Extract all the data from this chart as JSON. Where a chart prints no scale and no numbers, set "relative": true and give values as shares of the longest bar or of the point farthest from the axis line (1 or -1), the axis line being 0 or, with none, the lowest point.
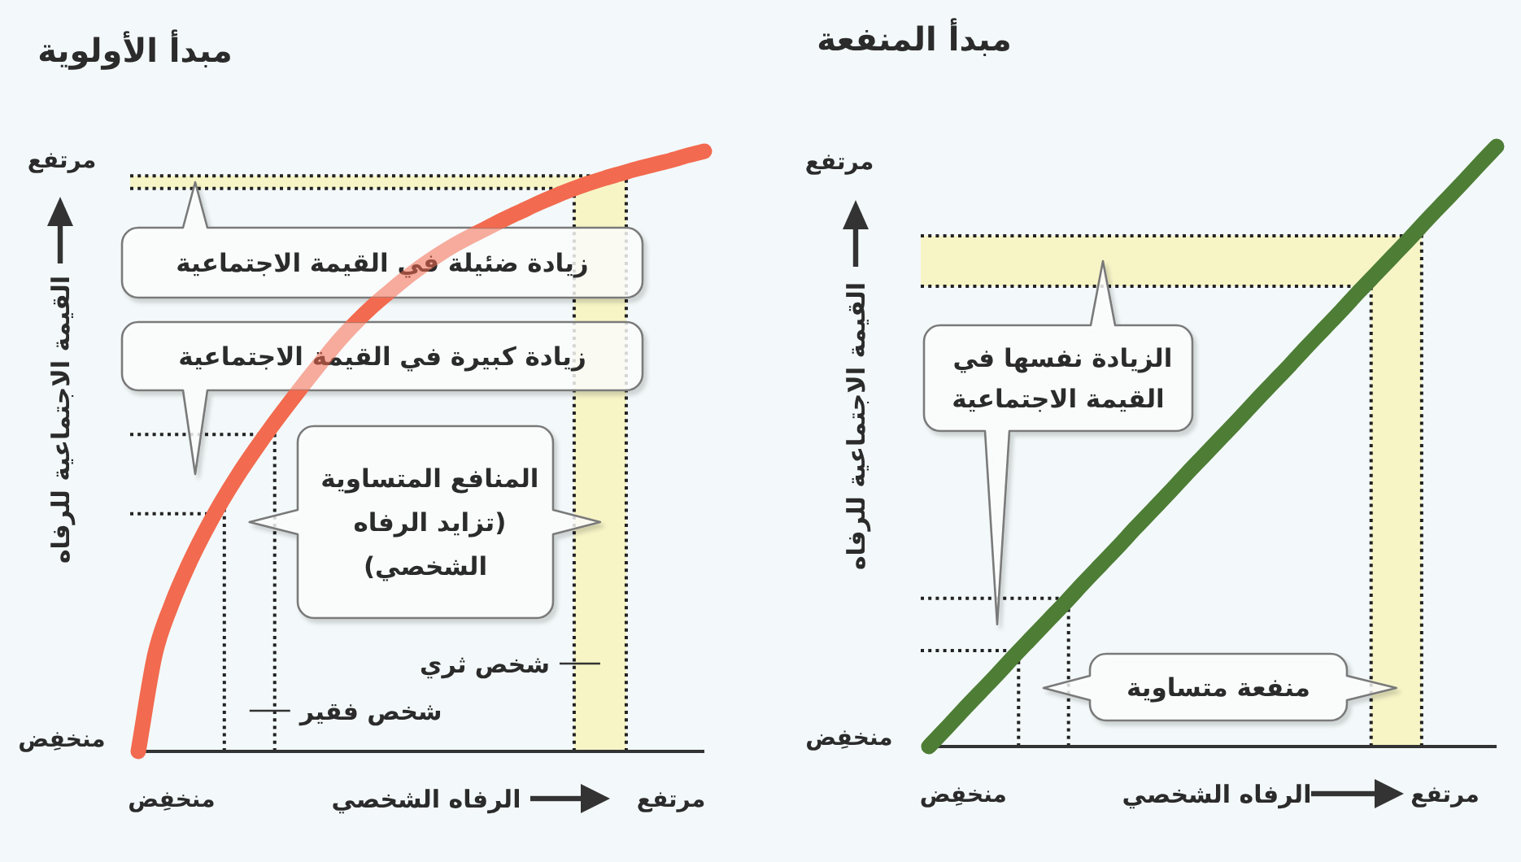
{
  "chart_data": [
    {
      "type": "line",
      "title": "مبدأ الأولوية",
      "xlabel": "الرفاه الشخصي",
      "ylabel": "القيمة الاجتماعية للرفاه",
      "relative": true,
      "categories": [
        null,
        null,
        "منخفِض",
        null,
        null,
        null,
        null,
        null,
        null,
        null,
        null,
        null,
        null,
        null,
        null,
        null,
        null,
        null,
        null,
        null,
        null,
        null,
        null,
        null,
        null,
        null,
        null,
        null,
        null,
        null,
        null,
        null,
        "مرتفع",
        null,
        null
      ],
      "series": [
        {
          "color": "#f26a4f",
          "values": [
            0,
            0.161,
            0.245,
            0.31,
            0.366,
            0.416,
            0.461,
            0.502,
            0.541,
            0.578,
            0.614,
            0.649,
            0.683,
            0.713,
            0.74,
            0.764,
            0.787,
            0.808,
            0.827,
            0.844,
            0.859,
            0.873,
            0.887,
            0.9,
            0.913,
            0.925,
            0.936,
            0.946,
            0.955,
            0.963,
            0.971,
            0.978,
            0.985,
            0.993,
            1
          ]
        }
      ],
      "ref_lines": [
        {
          "axis": "y",
          "value": 0.396,
          "color": "#222222",
          "line_style": "dotted"
        },
        {
          "axis": "y",
          "value": 0.528,
          "color": "#222222",
          "line_style": "dotted"
        },
        {
          "axis": "y",
          "value": 0.938,
          "color": "#222222",
          "line_style": "dotted"
        },
        {
          "axis": "y",
          "value": 0.959,
          "color": "#222222",
          "line_style": "dotted"
        }
      ],
      "bands": [
        {
          "axis": "y",
          "from": 0.938,
          "to": 0.959,
          "color": "#f7f5c6"
        }
      ],
      "annotations": [
        "زيادة ضئيلة في القيمة الاجتماعية",
        "زيادة كبيرة في القيمة الاجتماعية",
        "المنافع المتساوية\n(تزايد الرفاه\nالشخصي)",
        "شخص فقير",
        "شخص ثري",
        "مرتفع",
        "منخفِض"
      ]
    },
    {
      "type": "line",
      "title": "مبدأ المنفعة",
      "xlabel": "الرفاه الشخصي",
      "ylabel": "القيمة الاجتماعية للرفاه",
      "relative": true,
      "categories": [
        null,
        null,
        "منخفِض",
        null,
        null,
        null,
        null,
        null,
        null,
        null,
        null,
        null,
        null,
        null,
        null,
        null,
        null,
        null,
        null,
        null,
        null,
        null,
        null,
        null,
        null,
        null,
        null,
        null,
        null,
        null,
        "مرتفع",
        null,
        null,
        null
      ],
      "series": [
        {
          "color": "#4e7d35",
          "values": [
            0,
            0.03,
            0.061,
            0.091,
            0.121,
            0.152,
            0.182,
            0.212,
            0.242,
            0.273,
            0.303,
            0.333,
            0.364,
            0.394,
            0.424,
            0.455,
            0.485,
            0.515,
            0.545,
            0.576,
            0.606,
            0.636,
            0.667,
            0.697,
            0.727,
            0.758,
            0.788,
            0.818,
            0.848,
            0.879,
            0.909,
            0.939,
            0.97,
            1
          ]
        }
      ],
      "ref_lines": [
        {
          "axis": "y",
          "value": 0.16,
          "color": "#222222",
          "line_style": "dotted"
        },
        {
          "axis": "y",
          "value": 0.247,
          "color": "#222222",
          "line_style": "dotted"
        },
        {
          "axis": "y",
          "value": 0.767,
          "color": "#222222",
          "line_style": "dotted"
        },
        {
          "axis": "y",
          "value": 0.851,
          "color": "#222222",
          "line_style": "dotted"
        }
      ],
      "bands": [
        {
          "axis": "y",
          "from": 0.767,
          "to": 0.851,
          "color": "#f7f5c6"
        }
      ],
      "annotations": [
        "الزيادة نفسها في\nالقيمة الاجتماعية",
        "منفعة متساوية",
        "مرتفع",
        "منخفِض"
      ]
    }
  ]
}
